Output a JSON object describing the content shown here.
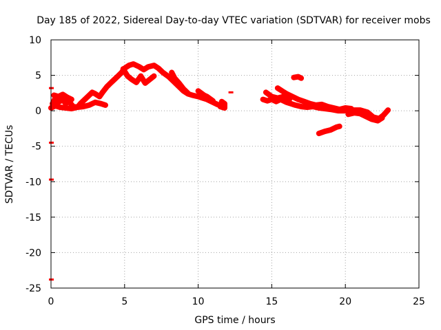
{
  "chart_data": {
    "type": "scatter",
    "title": "Day 185 of 2022, Sidereal Day-to-day VTEC variation (SDTVAR) for receiver mobs",
    "xlabel": "GPS time / hours",
    "ylabel": "SDTVAR / TECUs",
    "xlim": [
      0,
      25
    ],
    "ylim": [
      -25,
      10
    ],
    "xticks": [
      0,
      5,
      10,
      15,
      20,
      25
    ],
    "yticks": [
      -25,
      -20,
      -15,
      -10,
      -5,
      0,
      5,
      10
    ],
    "grid": true,
    "series": [
      {
        "name": "SDTVAR",
        "color": "#ff0000",
        "segments": [
          [
            [
              0.1,
              1.0
            ],
            [
              0.3,
              1.8
            ],
            [
              0.5,
              1.2
            ],
            [
              0.8,
              1.6
            ],
            [
              1.0,
              1.0
            ],
            [
              1.2,
              1.4
            ],
            [
              1.5,
              0.6
            ],
            [
              1.8,
              0.5
            ],
            [
              2.0,
              1.0
            ],
            [
              2.3,
              1.6
            ],
            [
              2.6,
              2.2
            ],
            [
              2.8,
              2.6
            ],
            [
              3.0,
              2.4
            ],
            [
              3.3,
              2.0
            ],
            [
              3.5,
              2.6
            ],
            [
              3.8,
              3.4
            ],
            [
              4.0,
              3.8
            ],
            [
              4.3,
              4.4
            ],
            [
              4.6,
              5.0
            ],
            [
              4.8,
              5.4
            ],
            [
              5.0,
              6.0
            ],
            [
              5.3,
              6.4
            ],
            [
              5.6,
              6.6
            ],
            [
              6.0,
              6.2
            ],
            [
              6.3,
              5.8
            ],
            [
              6.6,
              6.2
            ],
            [
              7.0,
              6.4
            ],
            [
              7.3,
              6.0
            ],
            [
              7.6,
              5.4
            ],
            [
              8.0,
              4.8
            ],
            [
              8.3,
              4.2
            ],
            [
              8.6,
              3.6
            ],
            [
              9.0,
              2.8
            ],
            [
              9.3,
              2.4
            ],
            [
              9.6,
              2.2
            ],
            [
              10.0,
              2.0
            ],
            [
              10.3,
              1.8
            ],
            [
              10.6,
              1.6
            ],
            [
              11.0,
              1.2
            ],
            [
              11.3,
              0.9
            ],
            [
              11.6,
              0.7
            ]
          ],
          [
            [
              0.0,
              0.4
            ],
            [
              0.3,
              0.7
            ],
            [
              0.6,
              0.5
            ],
            [
              1.0,
              0.4
            ],
            [
              1.4,
              0.3
            ],
            [
              1.8,
              0.5
            ],
            [
              2.2,
              0.6
            ],
            [
              2.6,
              0.8
            ],
            [
              3.0,
              1.2
            ],
            [
              3.4,
              1.0
            ],
            [
              3.7,
              0.8
            ]
          ],
          [
            [
              0.2,
              2.2
            ],
            [
              0.5,
              2.0
            ],
            [
              0.8,
              2.3
            ],
            [
              1.1,
              1.9
            ],
            [
              1.4,
              1.6
            ]
          ],
          [
            [
              4.9,
              5.9
            ],
            [
              5.2,
              4.9
            ],
            [
              5.5,
              4.4
            ],
            [
              5.8,
              4.0
            ],
            [
              6.1,
              4.9
            ],
            [
              6.4,
              3.9
            ],
            [
              6.7,
              4.4
            ],
            [
              7.0,
              4.9
            ]
          ],
          [
            [
              8.2,
              5.4
            ],
            [
              8.4,
              4.6
            ],
            [
              8.7,
              3.9
            ],
            [
              9.0,
              3.1
            ],
            [
              9.3,
              2.5
            ]
          ],
          [
            [
              10.0,
              2.8
            ],
            [
              10.2,
              2.5
            ],
            [
              10.4,
              2.2
            ],
            [
              10.6,
              2.0
            ],
            [
              10.8,
              1.7
            ],
            [
              11.0,
              1.4
            ]
          ],
          [
            [
              11.6,
              1.3
            ],
            [
              11.8,
              1.0
            ],
            [
              11.8,
              0.4
            ],
            [
              11.5,
              0.6
            ]
          ],
          [
            [
              12.2,
              2.6
            ]
          ],
          [
            [
              14.4,
              1.6
            ],
            [
              14.7,
              1.4
            ],
            [
              15.0,
              1.6
            ],
            [
              15.3,
              1.3
            ],
            [
              15.6,
              1.6
            ],
            [
              16.0,
              1.2
            ],
            [
              16.3,
              1.0
            ],
            [
              16.6,
              0.8
            ],
            [
              17.0,
              0.6
            ],
            [
              17.4,
              0.5
            ],
            [
              17.8,
              0.6
            ],
            [
              18.2,
              0.4
            ],
            [
              18.6,
              0.3
            ],
            [
              19.0,
              0.2
            ],
            [
              19.5,
              0.0
            ],
            [
              20.0,
              0.0
            ],
            [
              20.5,
              0.1
            ],
            [
              21.0,
              0.1
            ],
            [
              21.5,
              -0.2
            ],
            [
              21.9,
              -0.9
            ],
            [
              22.3,
              -1.1
            ],
            [
              22.6,
              -0.6
            ],
            [
              22.9,
              0.1
            ]
          ],
          [
            [
              14.6,
              2.6
            ],
            [
              15.0,
              2.0
            ],
            [
              15.4,
              1.8
            ],
            [
              15.8,
              2.0
            ],
            [
              16.2,
              1.6
            ]
          ],
          [
            [
              15.4,
              3.2
            ],
            [
              15.7,
              2.8
            ],
            [
              16.0,
              2.4
            ],
            [
              16.4,
              2.0
            ],
            [
              16.8,
              1.6
            ],
            [
              17.2,
              1.3
            ],
            [
              17.6,
              1.0
            ],
            [
              18.0,
              0.8
            ],
            [
              18.4,
              0.9
            ],
            [
              18.8,
              0.6
            ],
            [
              19.2,
              0.4
            ],
            [
              19.6,
              0.2
            ],
            [
              20.0,
              0.4
            ],
            [
              20.4,
              0.3
            ]
          ],
          [
            [
              20.2,
              -0.5
            ],
            [
              20.6,
              -0.3
            ],
            [
              21.0,
              -0.4
            ],
            [
              21.4,
              -0.8
            ],
            [
              21.8,
              -1.2
            ],
            [
              22.2,
              -1.4
            ],
            [
              22.5,
              -1.0
            ]
          ],
          [
            [
              16.5,
              4.7
            ],
            [
              16.8,
              4.8
            ],
            [
              17.0,
              4.6
            ]
          ],
          [
            [
              18.2,
              -3.2
            ],
            [
              18.6,
              -2.9
            ],
            [
              19.0,
              -2.7
            ],
            [
              19.4,
              -2.3
            ],
            [
              19.6,
              -2.2
            ]
          ],
          [
            [
              0.0,
              -4.5
            ]
          ],
          [
            [
              0.0,
              -9.7
            ]
          ],
          [
            [
              0.0,
              -23.8
            ]
          ],
          [
            [
              0.0,
              3.2
            ]
          ]
        ]
      }
    ]
  }
}
